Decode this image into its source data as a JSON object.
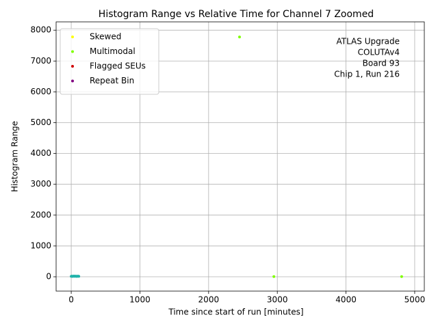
{
  "chart_data": {
    "type": "scatter",
    "title": "Histogram Range vs Relative Time for Channel 7 Zoomed",
    "x_label": "Time since start of run [minutes]",
    "y_label": "Histogram Range",
    "annotation": [
      "ATLAS Upgrade",
      "COLUTAv4",
      "Board 93",
      "Chip 1, Run 216"
    ],
    "series": [
      {
        "color": "#20b2aa",
        "x": [
          0,
          10,
          20,
          30,
          40,
          50,
          60,
          70,
          80,
          90,
          100,
          110
        ],
        "values": [
          15,
          20,
          12,
          18,
          22,
          14,
          16,
          20,
          13,
          17,
          19,
          15
        ]
      },
      {
        "name": "Skewed",
        "color": "#ffff00",
        "x": [],
        "values": []
      },
      {
        "name": "Multimodal",
        "color": "#7fff00",
        "x": [
          2450,
          2950,
          4810
        ],
        "values": [
          7780,
          5,
          5
        ]
      },
      {
        "name": "Flagged SEUs",
        "color": "#d00000",
        "x": [],
        "values": []
      },
      {
        "name": "Repeat Bin",
        "color": "#800080",
        "x": [],
        "values": []
      }
    ],
    "xlim": [
      -220,
      5140
    ],
    "xticks": [
      0,
      1000,
      2000,
      3000,
      4000,
      5000
    ],
    "ylim": [
      -465,
      8270
    ],
    "yticks": [
      0,
      1000,
      2000,
      3000,
      4000,
      5000,
      6000,
      7000,
      8000
    ],
    "grid": true,
    "legend": "upper left"
  }
}
